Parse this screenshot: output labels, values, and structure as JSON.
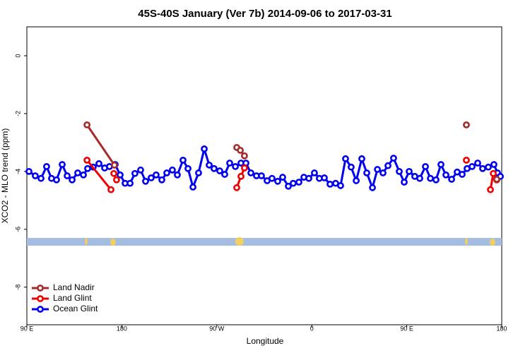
{
  "chart_data": {
    "type": "line",
    "title": "45S-40S January (Ver 7b)   2014-09-06 to 2017-03-31",
    "xlabel": "Longitude",
    "ylabel": "XCO2 - MLO trend (ppm)",
    "xlim": [
      90,
      540
    ],
    "xticks": [
      {
        "value": 90,
        "label": "90 E"
      },
      {
        "value": 180,
        "label": "180"
      },
      {
        "value": 270,
        "label": "90 W"
      },
      {
        "value": 360,
        "label": "0"
      },
      {
        "value": 450,
        "label": "90 E"
      },
      {
        "value": 540,
        "label": "180"
      }
    ],
    "ylim": [
      -9.3,
      1
    ],
    "yticks": [
      0,
      -2,
      -4,
      -6,
      -8
    ],
    "legend": "bottom-left",
    "series": [
      {
        "name": "Ocean Glint",
        "color": "#0000ee",
        "x": [
          92.0,
          98.0,
          103.4,
          108.7,
          113.4,
          118.1,
          123.5,
          128.2,
          132.9,
          138.2,
          143.6,
          147.6,
          152.9,
          158.3,
          163.7,
          168.3,
          173.7,
          178.4,
          183.1,
          187.8,
          192.4,
          197.8,
          202.5,
          207.8,
          212.5,
          217.9,
          222.6,
          227.9,
          232.6,
          238.0,
          242.7,
          247.4,
          252.7,
          258.1,
          262.8,
          267.4,
          272.8,
          277.5,
          282.2,
          287.6,
          292.9,
          297.6,
          302.3,
          307.6,
          312.3,
          317.7,
          322.3,
          327.7,
          332.4,
          337.8,
          342.4,
          347.8,
          352.5,
          357.2,
          362.5,
          367.2,
          371.9,
          377.3,
          382.6,
          387.3,
          392.0,
          397.3,
          402.1,
          407.4,
          412.1,
          417.5,
          422.2,
          427.5,
          432.2,
          437.5,
          442.9,
          447.6,
          452.3,
          457.6,
          462.3,
          467.7,
          472.4,
          477.7,
          482.4,
          487.1,
          492.5,
          497.8,
          502.5,
          507.2,
          511.9,
          517.2,
          521.9,
          527.3,
          532.6,
          536.0,
          538.7
        ],
        "values": [
          -4.0,
          -4.15,
          -4.24,
          -3.83,
          -4.24,
          -4.29,
          -3.76,
          -4.15,
          -4.29,
          -4.05,
          -4.12,
          -3.9,
          -3.85,
          -3.73,
          -3.88,
          -3.83,
          -3.76,
          -4.12,
          -4.41,
          -4.41,
          -4.07,
          -3.95,
          -4.34,
          -4.22,
          -4.12,
          -4.29,
          -4.05,
          -3.95,
          -4.12,
          -3.61,
          -3.9,
          -4.54,
          -4.05,
          -3.22,
          -3.78,
          -3.9,
          -3.98,
          -4.1,
          -3.71,
          -3.83,
          -3.71,
          -3.71,
          -4.05,
          -4.15,
          -4.15,
          -4.32,
          -4.24,
          -4.34,
          -4.2,
          -4.51,
          -4.41,
          -4.37,
          -4.2,
          -4.24,
          -4.05,
          -4.24,
          -4.22,
          -4.44,
          -4.41,
          -4.49,
          -3.56,
          -3.85,
          -4.32,
          -3.56,
          -4.05,
          -4.56,
          -3.93,
          -4.05,
          -3.8,
          -3.54,
          -4.0,
          -4.37,
          -4.0,
          -4.17,
          -4.24,
          -3.83,
          -4.24,
          -4.29,
          -3.76,
          -4.12,
          -4.27,
          -4.02,
          -4.1,
          -3.9,
          -3.83,
          -3.71,
          -3.9,
          -3.85,
          -3.76,
          -4.05,
          -4.17
        ]
      },
      {
        "name": "Land Glint",
        "color": "#ee0000",
        "x": [
          147.0,
          169.7,
          null,
          172.4,
          175.0,
          null,
          288.9,
          292.9,
          296.2,
          null,
          506.5,
          null,
          529.3,
          532.0,
          535.3
        ],
        "values": [
          -3.61,
          -4.63,
          null,
          -4.07,
          -4.29,
          null,
          -4.56,
          -4.17,
          -3.88,
          null,
          -3.61,
          null,
          -4.63,
          -4.07,
          -4.29
        ]
      },
      {
        "name": "Land Nadir",
        "color": "#a52a2a",
        "x": [
          147.0,
          173.0,
          null,
          288.9,
          292.3,
          296.2,
          null,
          506.5,
          null,
          535.3
        ],
        "values": [
          -2.39,
          -3.78,
          null,
          -3.17,
          -3.27,
          -3.46,
          null,
          -2.39,
          null,
          -4.27
        ]
      }
    ]
  }
}
